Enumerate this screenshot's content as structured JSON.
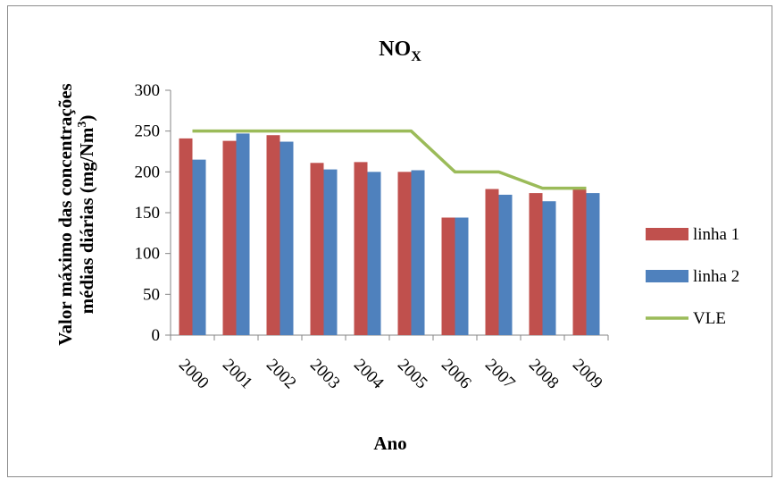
{
  "chart_data": {
    "type": "bar",
    "title": "NO",
    "title_subscript": "X",
    "ylabel_line1": "Valor máximo das concentrações",
    "ylabel_line2_pre": "médias diárias (mg/Nm",
    "ylabel_line2_sup": "3",
    "ylabel_line2_post": ")",
    "xlabel": "Ano",
    "ylim": [
      0,
      300
    ],
    "yticks": [
      0,
      50,
      100,
      150,
      200,
      250,
      300
    ],
    "grid": false,
    "legend_position": "right",
    "categories": [
      "2000",
      "2001",
      "2002",
      "2003",
      "2004",
      "2005",
      "2006",
      "2007",
      "2008",
      "2009"
    ],
    "series": [
      {
        "name": "linha 1",
        "type": "bar",
        "color": "#c0504d",
        "values": [
          241,
          238,
          245,
          211,
          212,
          200,
          144,
          179,
          174,
          181
        ]
      },
      {
        "name": "linha 2",
        "type": "bar",
        "color": "#4f81bd",
        "values": [
          215,
          247,
          237,
          203,
          200,
          202,
          144,
          172,
          164,
          174
        ]
      },
      {
        "name": "VLE",
        "type": "line",
        "color": "#9bbb59",
        "values": [
          250,
          250,
          250,
          250,
          250,
          250,
          200,
          200,
          180,
          180
        ]
      }
    ]
  }
}
